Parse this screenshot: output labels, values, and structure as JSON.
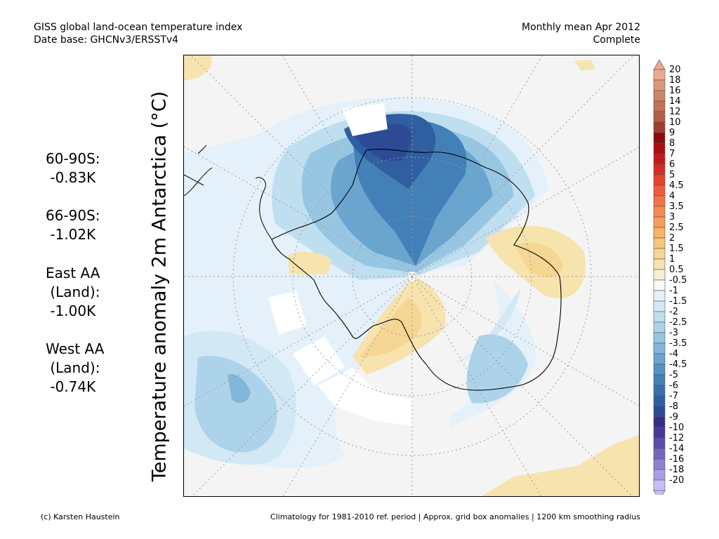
{
  "header": {
    "title": "GISS global land-ocean temperature index",
    "database": "Date base: GHCNv3/ERSSTv4",
    "period": "Monthly mean Apr 2012",
    "status": "Complete"
  },
  "ylabel": "Temperature anomaly 2m Antarctica (°C)",
  "stats": [
    {
      "lines": [
        "60-90S:",
        " -0.83K"
      ]
    },
    {
      "lines": [
        "66-90S:",
        " -1.02K"
      ]
    },
    {
      "lines": [
        "East AA",
        " (Land):",
        " -1.00K"
      ]
    },
    {
      "lines": [
        "West AA",
        " (Land):",
        " -0.74K"
      ]
    }
  ],
  "colorbar": {
    "labels": [
      "20",
      "18",
      "16",
      "14",
      "12",
      "10",
      "9",
      "8",
      "7",
      "6",
      "5",
      "4.5",
      "4",
      "3.5",
      "3",
      "2.5",
      "2",
      "1.5",
      "1",
      "0.5",
      "-0.5",
      "-1",
      "-1.5",
      "-2",
      "-2.5",
      "-3",
      "-3.5",
      "-4",
      "-4.5",
      "-5",
      "-6",
      "-7",
      "-8",
      "-9",
      "-10",
      "-12",
      "-14",
      "-16",
      "-18",
      "-20"
    ],
    "colors": [
      "#e8a98e",
      "#dc967c",
      "#cf8468",
      "#c27157",
      "#b45e46",
      "#a33b30",
      "#8f0b0b",
      "#a80f0f",
      "#c41a1a",
      "#d92b22",
      "#e8412f",
      "#ef5c3a",
      "#f27446",
      "#f58a50",
      "#f79e5b",
      "#f7b466",
      "#f6c77c",
      "#f5d692",
      "#f6e3ad",
      "#f4efd2",
      "#f8f8f8",
      "#e4f1fa",
      "#d2e8f5",
      "#bfdff0",
      "#acd3ea",
      "#97c6e3",
      "#82b7da",
      "#6aa5d0",
      "#5591c4",
      "#4480b8",
      "#3a6fae",
      "#2f5ea1",
      "#2d4b94",
      "#352e8b",
      "#48389a",
      "#5d4cad",
      "#7565c0",
      "#8f80d1",
      "#aa9fe0",
      "#c6befa"
    ]
  },
  "footer": {
    "credit": "(c) Karsten Haustein",
    "note": "Climatology for 1981-2010 ref. period | Approx. grid box anomalies | 1200 km smoothing radius"
  }
}
